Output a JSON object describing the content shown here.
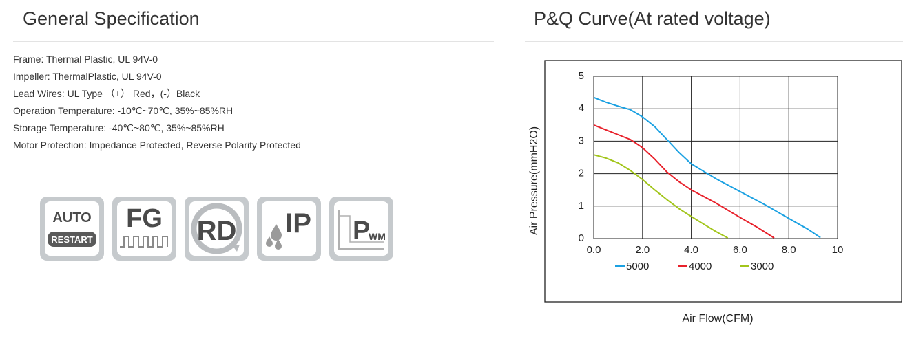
{
  "spec": {
    "title": "General Specification",
    "items": [
      "Frame: Thermal Plastic, UL 94V-0",
      "Impeller: ThermalPlastic, UL 94V-0",
      "Lead Wires: UL Type （+） Red，(-）Black",
      "Operation Temperature: -10℃~70℃, 35%~85%RH",
      "Storage Temperature: -40℃~80℃, 35%~85%RH",
      "Motor Protection: Impedance Protected, Reverse Polarity Protected"
    ],
    "badges": [
      {
        "name": "auto-restart-badge",
        "icon": "auto-restart-icon",
        "text": "AUTO",
        "sub": "RESTART"
      },
      {
        "name": "fg-badge",
        "icon": "frequency-generator-icon",
        "text": "FG"
      },
      {
        "name": "rd-badge",
        "icon": "rotation-detection-icon",
        "text": "RD"
      },
      {
        "name": "ip-badge",
        "icon": "ingress-protection-icon",
        "text": "IP"
      },
      {
        "name": "pwm-badge",
        "icon": "pwm-control-icon",
        "text": "P",
        "sub": "WM"
      }
    ]
  },
  "pq": {
    "title": "P&Q Curve(At rated voltage)"
  },
  "colors": {
    "blue": "#1ba1e2",
    "red": "#e8212b",
    "green": "#a2c51b"
  },
  "chart_data": {
    "type": "line",
    "title": "P&Q Curve(At rated voltage)",
    "xlabel": "Air Flow(CFM)",
    "ylabel": "Air Pressure(mmH2O)",
    "xlim": [
      0,
      10
    ],
    "ylim": [
      0,
      5
    ],
    "x_ticks": [
      "0.0",
      "2.0",
      "4.0",
      "6.0",
      "8.0",
      "10"
    ],
    "y_ticks": [
      "0",
      "1",
      "2",
      "3",
      "4",
      "5"
    ],
    "grid": true,
    "legend": "bottom",
    "series": [
      {
        "name": "5000",
        "color": "#1ba1e2",
        "x": [
          0.0,
          0.5,
          1.0,
          1.5,
          2.0,
          2.5,
          3.0,
          3.5,
          4.0,
          5.0,
          6.0,
          7.0,
          8.0,
          8.8,
          9.3
        ],
        "y": [
          4.35,
          4.2,
          4.08,
          3.97,
          3.75,
          3.45,
          3.05,
          2.65,
          2.3,
          1.85,
          1.45,
          1.05,
          0.62,
          0.28,
          0.03
        ]
      },
      {
        "name": "4000",
        "color": "#e8212b",
        "x": [
          0.0,
          0.5,
          1.0,
          1.5,
          2.0,
          2.5,
          3.0,
          3.5,
          4.0,
          5.0,
          6.0,
          6.7,
          7.4
        ],
        "y": [
          3.5,
          3.35,
          3.2,
          3.05,
          2.8,
          2.45,
          2.05,
          1.75,
          1.5,
          1.1,
          0.65,
          0.35,
          0.02
        ]
      },
      {
        "name": "3000",
        "color": "#a2c51b",
        "x": [
          0.0,
          0.5,
          1.0,
          1.5,
          2.0,
          2.5,
          3.0,
          3.5,
          4.0,
          4.5,
          5.0,
          5.5
        ],
        "y": [
          2.58,
          2.48,
          2.33,
          2.1,
          1.82,
          1.5,
          1.2,
          0.92,
          0.68,
          0.45,
          0.22,
          0.02
        ]
      }
    ]
  }
}
